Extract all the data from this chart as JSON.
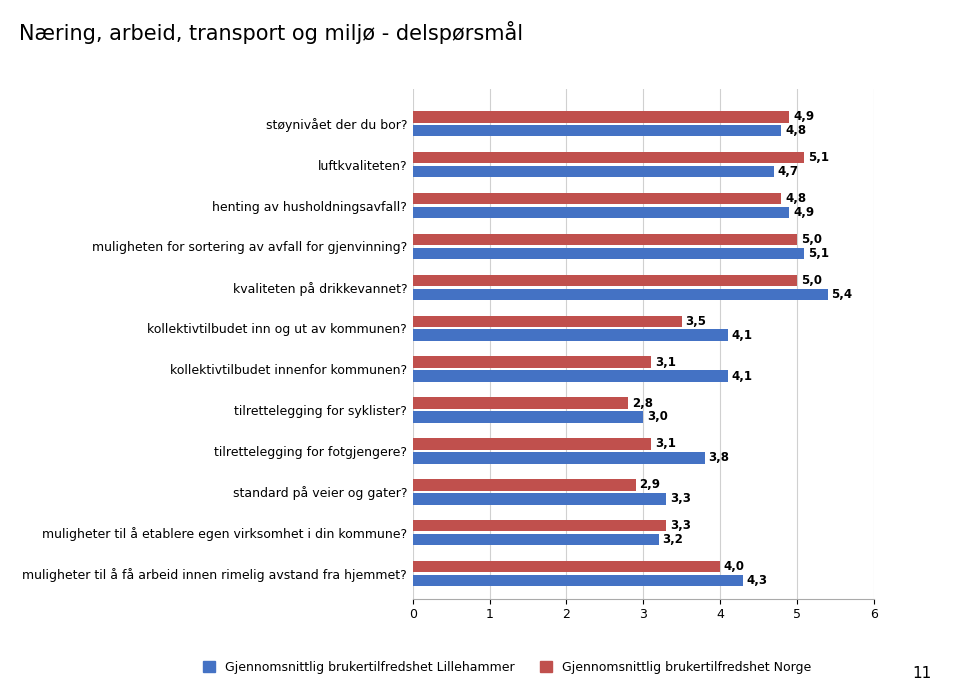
{
  "title": "Næring, arbeid, transport og miljø - delspørsmål",
  "categories": [
    "muligheter til å få arbeid innen rimelig avstand fra hjemmet?",
    "muligheter til å etablere egen virksomhet i din kommune?",
    "standard på veier og gater?",
    "tilrettelegging for fotgjengere?",
    "tilrettelegging for syklister?",
    "kollektivtilbudet innenfor kommunen?",
    "kollektivtilbudet inn og ut av kommunen?",
    "kvaliteten på drikkevannet?",
    "muligheten for sortering av avfall for gjenvinning?",
    "henting av husholdningsavfall?",
    "luftkvaliteten?",
    "støynivået der du bor?"
  ],
  "lillehammer": [
    4.3,
    3.2,
    3.3,
    3.8,
    3.0,
    4.1,
    4.1,
    5.4,
    5.1,
    4.9,
    4.7,
    4.8
  ],
  "norge": [
    4.0,
    3.3,
    2.9,
    3.1,
    2.8,
    3.1,
    3.5,
    5.0,
    5.0,
    4.8,
    5.1,
    4.9
  ],
  "color_lillehammer": "#4472C4",
  "color_norge": "#C0504D",
  "legend_lillehammer": "Gjennomsnittlig brukertilfredshet Lillehammer",
  "legend_norge": "Gjennomsnittlig brukertilfredshet Norge",
  "xlim": [
    0,
    6
  ],
  "xticks": [
    0,
    1,
    2,
    3,
    4,
    5,
    6
  ],
  "page_number": "11"
}
